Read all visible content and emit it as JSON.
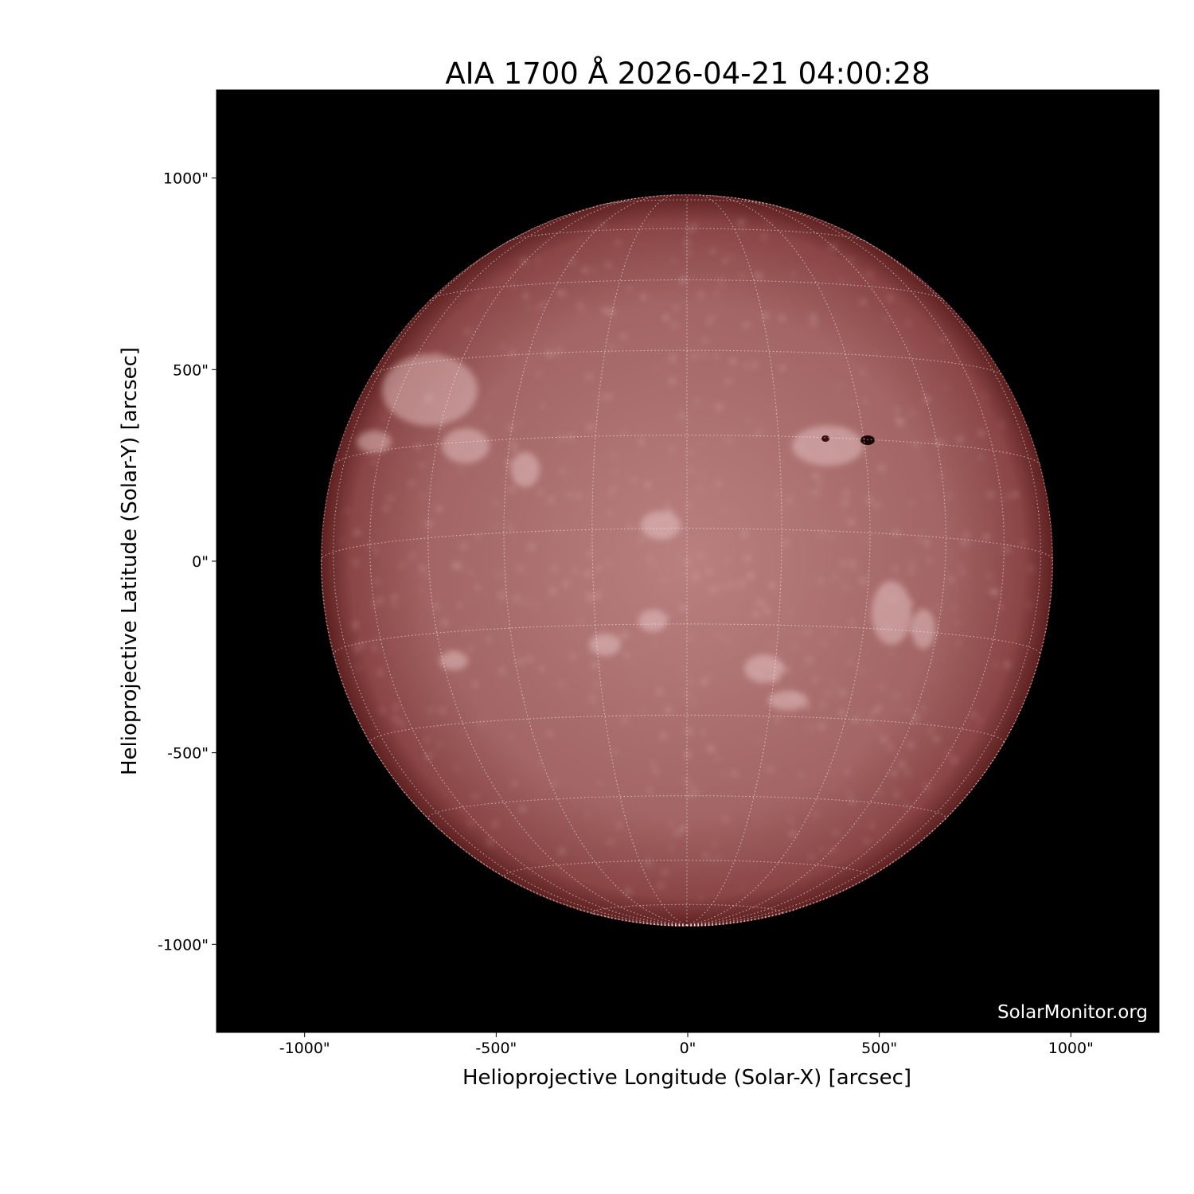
{
  "title": "AIA 1700 Å 2026-04-21 04:00:28",
  "x_axis": {
    "label": "Helioprojective Longitude (Solar-X) [arcsec]",
    "range": [
      -1230,
      1230
    ],
    "ticks": [
      -1000,
      -500,
      0,
      500,
      1000
    ],
    "tick_labels": [
      "-1000\"",
      "-500\"",
      "0\"",
      "500\"",
      "1000\""
    ]
  },
  "y_axis": {
    "label": "Helioprojective Latitude (Solar-Y) [arcsec]",
    "range": [
      -1230,
      1230
    ],
    "ticks": [
      1000,
      500,
      0,
      -500,
      -1000
    ],
    "tick_labels": [
      "1000\"",
      "500\"",
      "0\"",
      "-500\"",
      "-1000\""
    ]
  },
  "watermark": "SolarMonitor.org",
  "colors": {
    "background": "#000000",
    "disk_center": "#b87d7d",
    "disk_limb": "#6a2626",
    "grid": "#ffffff"
  },
  "grid_spacing_deg": 15
}
